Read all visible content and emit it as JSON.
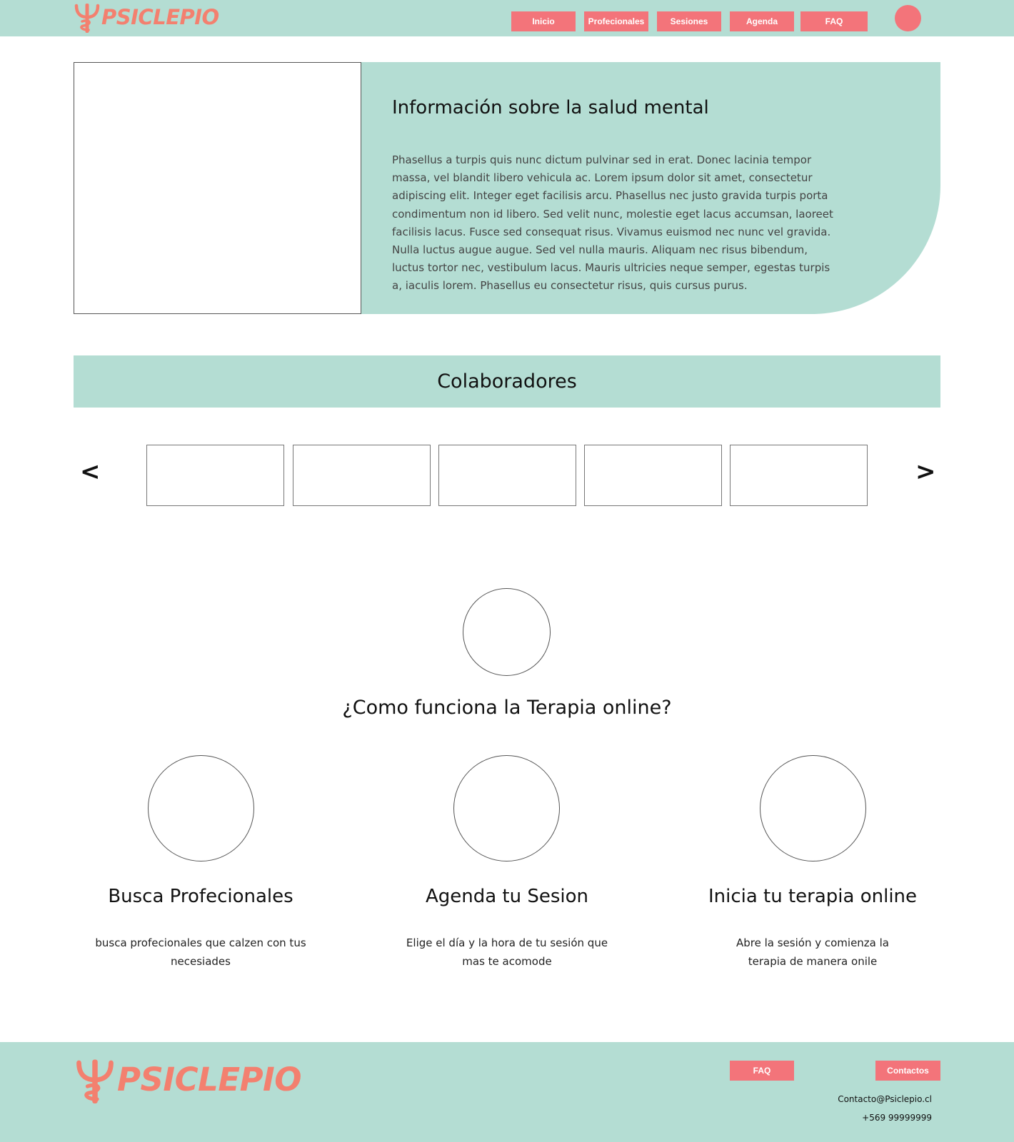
{
  "header": {
    "logo_text": "PSICLEPIO",
    "nav": [
      "Inicio",
      "Profecionales",
      "Sesiones",
      "Agenda",
      "FAQ"
    ]
  },
  "hero": {
    "title": "Información sobre la salud mental",
    "text": "Phasellus a turpis quis nunc dictum pulvinar sed in erat. Donec lacinia tempor massa, vel blandit libero vehicula ac. Lorem ipsum dolor sit amet, consectetur adipiscing elit. Integer eget facilisis arcu. Phasellus nec justo gravida turpis porta condimentum non id libero. Sed velit nunc, molestie eget lacus accumsan, laoreet facilisis lacus. Fusce sed consequat risus. Vivamus euismod nec nunc vel gravida. Nulla luctus augue augue. Sed vel nulla mauris. Aliquam nec risus bibendum, luctus tortor nec, vestibulum lacus. Mauris ultricies neque semper, egestas turpis a, iaculis lorem. Phasellus eu consectetur risus, quis cursus purus."
  },
  "collaborators": {
    "title": "Colaboradores",
    "prev": "<",
    "next": ">"
  },
  "how": {
    "title": "¿Como funciona la Terapia online?",
    "steps": [
      {
        "title": "Busca Profecionales",
        "desc": "busca profecionales que calzen con tus necesiades"
      },
      {
        "title": "Agenda tu Sesion",
        "desc": "Elige el día y la hora de tu sesión que mas te acomode"
      },
      {
        "title": "Inicia tu terapia online",
        "desc": "Abre la sesión y comienza la terapia de manera onile"
      }
    ]
  },
  "footer": {
    "logo_text": "PSICLEPIO",
    "faq": "FAQ",
    "contacts": "Contactos",
    "email": "Contacto@Psiclepio.cl",
    "phone": "+569 99999999"
  },
  "colors": {
    "mint": "#b4ddd3",
    "coral": "#f3747a",
    "logo": "#f3806f"
  }
}
